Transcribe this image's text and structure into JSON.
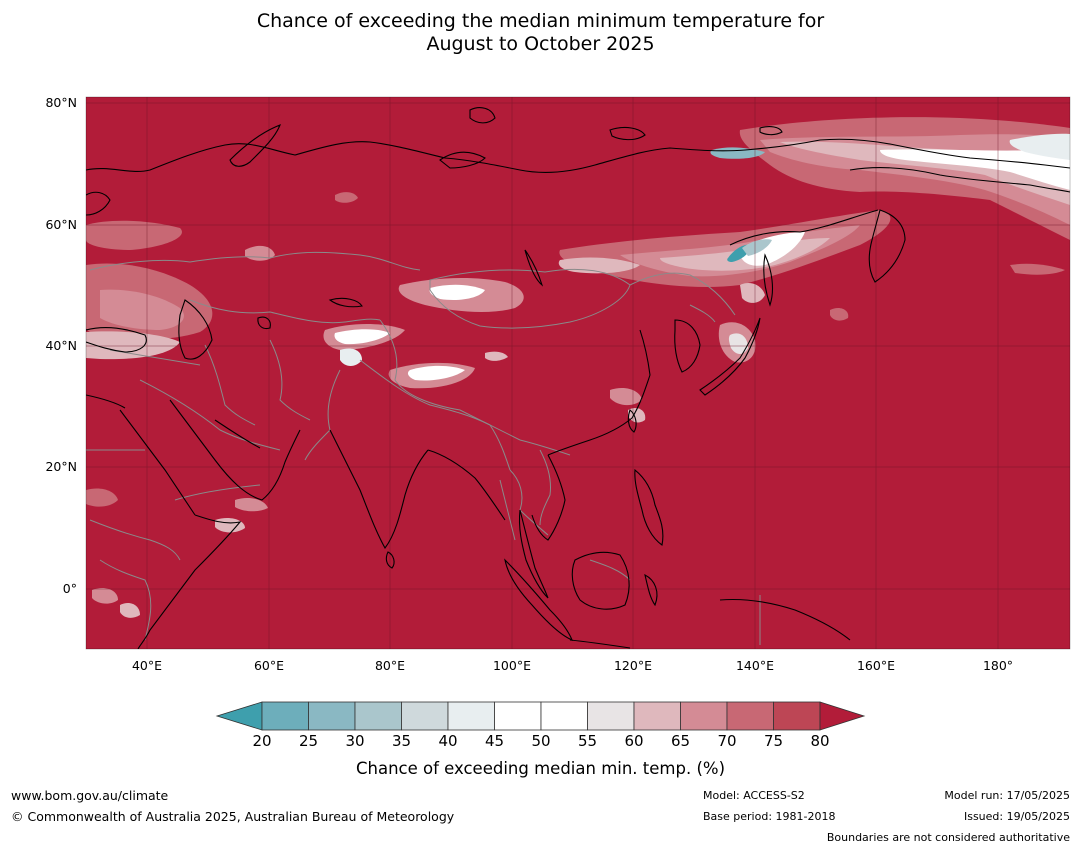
{
  "title": {
    "line1": "Chance of exceeding the median minimum temperature for",
    "line2": "August to October 2025"
  },
  "map": {
    "base_color": "#b21c39",
    "latitude_labels": [
      "80°N",
      "60°N",
      "40°N",
      "20°N",
      "0°"
    ],
    "longitude_labels": [
      "40°E",
      "60°E",
      "80°E",
      "100°E",
      "120°E",
      "140°E",
      "160°E",
      "180°"
    ]
  },
  "colorbar": {
    "ticks": [
      "20",
      "25",
      "30",
      "35",
      "40",
      "45",
      "50",
      "55",
      "60",
      "65",
      "70",
      "75",
      "80"
    ],
    "colors": [
      "#3e9fad",
      "#6daebb",
      "#8ab8c3",
      "#aac6cc",
      "#cfd9dc",
      "#e8eef0",
      "#ffffff",
      "#ffffff",
      "#e8e4e5",
      "#dfb8bd",
      "#d48b95",
      "#c86874",
      "#bd4655",
      "#b21c39"
    ],
    "label": "Chance of exceeding median min. temp. (%)"
  },
  "footer": {
    "website": "www.bom.gov.au/climate",
    "copyright": "© Commonwealth of Australia 2025, Australian Bureau of Meteorology",
    "model": "Model: ACCESS-S2",
    "base_period": "Base period: 1981-2018",
    "model_run": "Model run: 17/05/2025",
    "issued": "Issued: 19/05/2025",
    "disclaimer": "Boundaries are not considered authoritative"
  }
}
